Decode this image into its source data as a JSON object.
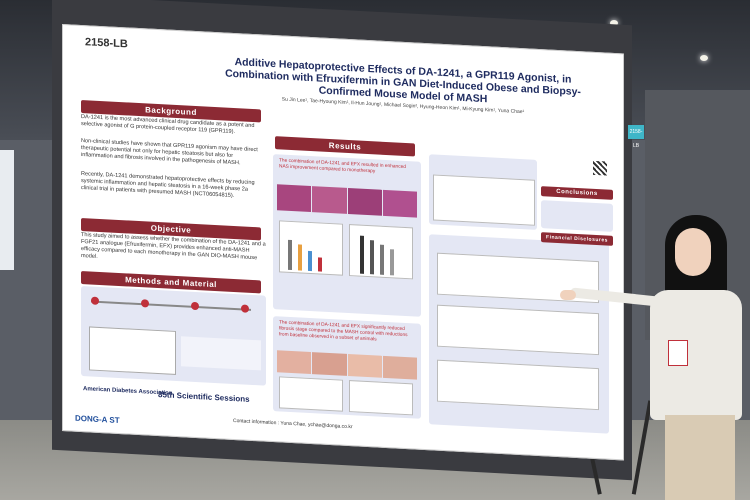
{
  "poster": {
    "id": "2158-LB",
    "title": "Additive Hepatoprotective Effects of DA-1241, a GPR119 Agonist, in Combination with Efruxifermin in GAN Diet-Induced Obese and Biopsy-Confirmed Mouse Model of MASH",
    "authors": "Su Jin Lee¹, Tae-Hyoung Kim¹, Il-Hun Joung¹, Michael Sogin², Hyung-Heon Kim¹, Mi-Kyung Kim¹, Yuna Chae¹",
    "sections": {
      "background": "Background",
      "objective": "Objective",
      "methods": "Methods and Material",
      "results": "Results",
      "conclusions": "Conclusions",
      "disclosures": "Financial Disclosures"
    },
    "background_text_1": "DA-1241 is the most advanced clinical drug candidate as a potent and selective agonist of G protein-coupled receptor 119 (GPR119).",
    "background_text_2": "Non-clinical studies have shown that GPR119 agonism may have direct therapeutic potential not only for hepatic steatosis but also for inflammation and fibrosis involved in the pathogenesis of MASH.",
    "background_text_3": "Recently, DA-1241 demonstrated hepatoprotective effects by reducing systemic inflammation and hepatic steatosis in a 16-week phase 2a clinical trial in patients with presumed MASH (NCT06054815).",
    "objective_text": "This study aimed to assess whether the combination of the DA-1241 and a FGF21 analogue (Efruxifermin, EFX) provides enhanced anti-MASH efficacy compared to each monotherapy in the GAN DIO-MASH mouse model.",
    "result_1": "The combination of DA-1241 and EFX resulted in enhanced NAS improvement compared to monotherapy",
    "result_2": "The combination of DA-1241 and EFX significantly reduced fibrosis stage compared to the MASH control with reductions from baseline observed in a subset of animals",
    "sponsor_1": "American Diabetes Association.",
    "sponsor_2": "85th Scientific Sessions",
    "company": "DONG-A ST",
    "contact": "Contact information : Yuna Chae, ychae@donga.co.kr"
  },
  "side_tag": "2158-LB",
  "colors": {
    "accent": "#8c2a34",
    "title": "#1f2c60",
    "panel": "#e4e7f4",
    "tissue": "#b0508f"
  }
}
